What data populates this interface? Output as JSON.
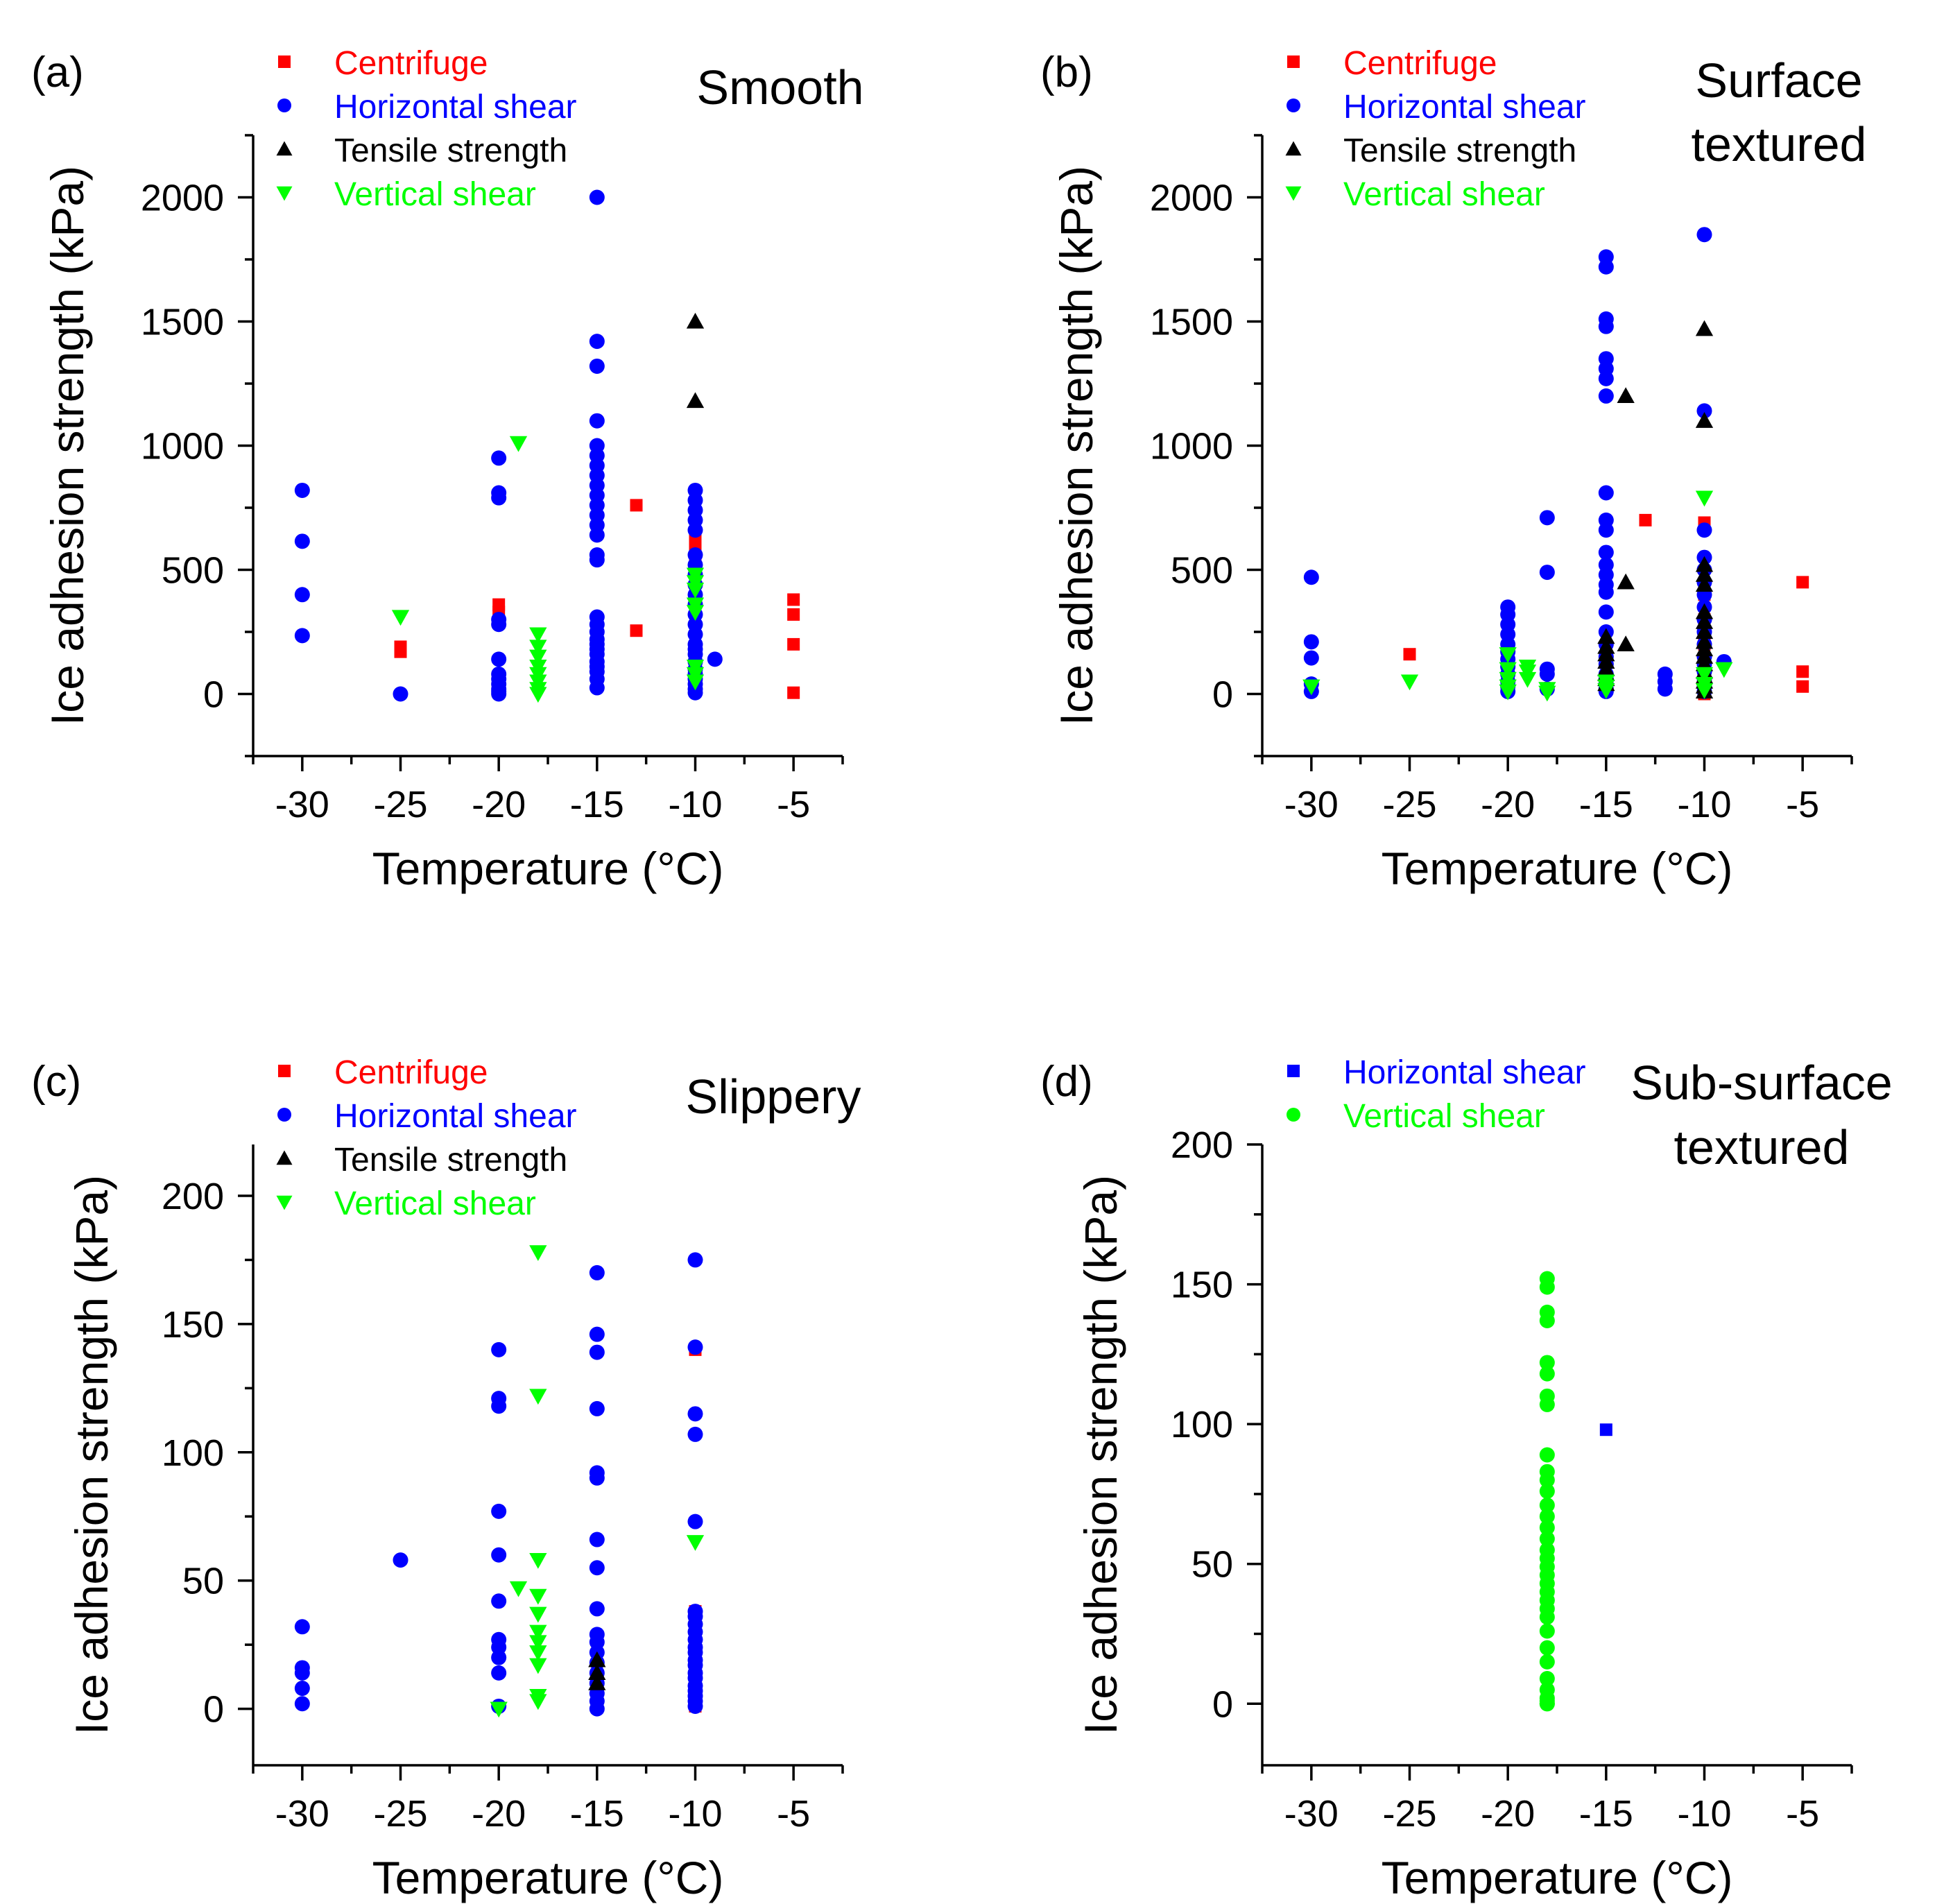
{
  "chart_data": [
    {
      "type": "scatter",
      "panel_label": "(a)",
      "title": [
        "Smooth"
      ],
      "xlabel": "Temperature (°C)",
      "ylabel": "Ice adhesion strength (kPa)",
      "xlim": [
        -32.5,
        -2.5
      ],
      "ylim": [
        -250,
        2250
      ],
      "xticks": [
        -30,
        -25,
        -20,
        -15,
        -10,
        -5
      ],
      "yticks": [
        0,
        500,
        1000,
        1500,
        2000
      ],
      "legend_position": "top-left",
      "series": [
        {
          "name": "Centrifuge",
          "marker": "square",
          "color": "#ff0000",
          "x": [
            -25,
            -25,
            -20,
            -20,
            -13,
            -13,
            -10,
            -10,
            -10,
            -10,
            -5,
            -5,
            -5,
            -5
          ],
          "y": [
            190,
            170,
            360,
            330,
            760,
            255,
            640,
            600,
            520,
            120,
            380,
            320,
            200,
            5
          ]
        },
        {
          "name": "Horizontal shear",
          "marker": "circle",
          "color": "#0000ff",
          "x": [
            -30,
            -30,
            -30,
            -30,
            -25,
            -20,
            -20,
            -20,
            -20,
            -20,
            -20,
            -20,
            -20,
            -20,
            -20,
            -20,
            -20,
            -15,
            -15,
            -15,
            -15,
            -15,
            -15,
            -15,
            -15,
            -15,
            -15,
            -15,
            -15,
            -15,
            -15,
            -15,
            -15,
            -15,
            -15,
            -15,
            -15,
            -15,
            -15,
            -15,
            -15,
            -15,
            -15,
            -15,
            -15,
            -10,
            -10,
            -10,
            -10,
            -10,
            -10,
            -10,
            -10,
            -10,
            -10,
            -10,
            -10,
            -10,
            -10,
            -10,
            -10,
            -10,
            -10,
            -10,
            -10,
            -10,
            -10,
            -10,
            -10,
            -9
          ],
          "y": [
            820,
            615,
            400,
            235,
            0,
            950,
            810,
            790,
            300,
            280,
            140,
            80,
            60,
            40,
            20,
            10,
            0,
            2000,
            1420,
            1320,
            1100,
            1000,
            960,
            920,
            880,
            840,
            800,
            760,
            720,
            680,
            640,
            560,
            540,
            310,
            280,
            250,
            220,
            200,
            180,
            160,
            130,
            110,
            90,
            60,
            25,
            820,
            780,
            740,
            700,
            660,
            560,
            520,
            480,
            440,
            400,
            360,
            320,
            280,
            240,
            200,
            180,
            160,
            130,
            100,
            80,
            60,
            40,
            20,
            5,
            140
          ]
        },
        {
          "name": "Tensile strength",
          "marker": "triangle-up",
          "color": "#000000",
          "x": [
            -10,
            -10
          ],
          "y": [
            1500,
            1180
          ]
        },
        {
          "name": "Vertical shear",
          "marker": "triangle-down",
          "color": "#00ff00",
          "x": [
            -25,
            -19,
            -18,
            -18,
            -18,
            -18,
            -18,
            -18,
            -18,
            -18,
            -10,
            -10,
            -10,
            -10,
            -10,
            -10,
            -10,
            -10
          ],
          "y": [
            310,
            1010,
            240,
            190,
            150,
            110,
            80,
            50,
            20,
            0,
            480,
            450,
            420,
            360,
            330,
            110,
            80,
            50
          ]
        }
      ]
    },
    {
      "type": "scatter",
      "panel_label": "(b)",
      "title": [
        "Surface",
        "textured"
      ],
      "xlabel": "Temperature (°C)",
      "ylabel": "Ice adhesion strength (kPa)",
      "xlim": [
        -32.5,
        -2.5
      ],
      "ylim": [
        -250,
        2250
      ],
      "xticks": [
        -30,
        -25,
        -20,
        -15,
        -10,
        -5
      ],
      "yticks": [
        0,
        500,
        1000,
        1500,
        2000
      ],
      "legend_position": "top-left",
      "series": [
        {
          "name": "Centrifuge",
          "marker": "square",
          "color": "#ff0000",
          "x": [
            -25,
            -13,
            -10,
            -10,
            -10,
            -10,
            -10,
            -10,
            -5,
            -5,
            -5
          ],
          "y": [
            160,
            700,
            690,
            400,
            300,
            200,
            100,
            0,
            450,
            90,
            30
          ]
        },
        {
          "name": "Horizontal shear",
          "marker": "circle",
          "color": "#0000ff",
          "x": [
            -30,
            -30,
            -30,
            -30,
            -30,
            -20,
            -20,
            -20,
            -20,
            -20,
            -20,
            -20,
            -20,
            -20,
            -20,
            -20,
            -20,
            -18,
            -18,
            -18,
            -18,
            -18,
            -15,
            -15,
            -15,
            -15,
            -15,
            -15,
            -15,
            -15,
            -15,
            -15,
            -15,
            -15,
            -15,
            -15,
            -15,
            -15,
            -15,
            -15,
            -15,
            -15,
            -15,
            -15,
            -15,
            -15,
            -15,
            -15,
            -12,
            -12,
            -12,
            -10,
            -10,
            -10,
            -10,
            -10,
            -10,
            -10,
            -10,
            -10,
            -10,
            -10,
            -10,
            -10,
            -10,
            -10,
            -10,
            -10,
            -9
          ],
          "y": [
            470,
            210,
            145,
            40,
            10,
            350,
            320,
            280,
            240,
            200,
            170,
            140,
            110,
            80,
            50,
            30,
            10,
            710,
            490,
            100,
            80,
            20,
            1760,
            1720,
            1510,
            1480,
            1350,
            1310,
            1270,
            1200,
            810,
            700,
            660,
            570,
            520,
            480,
            440,
            410,
            330,
            250,
            200,
            150,
            120,
            80,
            60,
            40,
            20,
            10,
            80,
            50,
            20,
            1850,
            1140,
            660,
            550,
            500,
            450,
            400,
            350,
            300,
            250,
            200,
            150,
            120,
            90,
            60,
            30,
            10,
            130
          ]
        },
        {
          "name": "Tensile strength",
          "marker": "triangle-up",
          "color": "#000000",
          "x": [
            -15,
            -15,
            -15,
            -15,
            -15,
            -15,
            -15,
            -15,
            -14,
            -14,
            -14,
            -10,
            -10,
            -10,
            -10,
            -10,
            -10,
            -10,
            -10,
            -10,
            -10,
            -10,
            -10,
            -10,
            -10,
            -10,
            -10,
            -10
          ],
          "y": [
            230,
            190,
            160,
            130,
            100,
            80,
            60,
            40,
            1200,
            450,
            200,
            1470,
            1100,
            520,
            480,
            440,
            330,
            290,
            250,
            210,
            180,
            150,
            120,
            90,
            70,
            50,
            30,
            10
          ]
        },
        {
          "name": "Vertical shear",
          "marker": "triangle-down",
          "color": "#00ff00",
          "x": [
            -30,
            -25,
            -20,
            -20,
            -20,
            -20,
            -20,
            -19,
            -19,
            -19,
            -18,
            -18,
            -15,
            -15,
            -15,
            -10,
            -10,
            -10,
            -10,
            -9
          ],
          "y": [
            30,
            50,
            160,
            100,
            60,
            30,
            10,
            110,
            90,
            60,
            20,
            5,
            50,
            30,
            15,
            790,
            80,
            40,
            15,
            100
          ]
        }
      ]
    },
    {
      "type": "scatter",
      "panel_label": "(c)",
      "title": [
        "Slippery"
      ],
      "xlabel": "Temperature (°C)",
      "ylabel": "Ice adhesion strength (kPa)",
      "xlim": [
        -32.5,
        -2.5
      ],
      "ylim": [
        -22,
        220
      ],
      "xticks": [
        -30,
        -25,
        -20,
        -15,
        -10,
        -5
      ],
      "yticks": [
        0,
        50,
        100,
        150,
        200
      ],
      "legend_position": "top-left",
      "series": [
        {
          "name": "Centrifuge",
          "marker": "square",
          "color": "#ff0000",
          "x": [
            -10,
            -10,
            -10
          ],
          "y": [
            140,
            38,
            1
          ]
        },
        {
          "name": "Horizontal shear",
          "marker": "circle",
          "color": "#0000ff",
          "x": [
            -30,
            -30,
            -30,
            -30,
            -30,
            -25,
            -20,
            -20,
            -20,
            -20,
            -20,
            -20,
            -20,
            -20,
            -20,
            -20,
            -20,
            -15,
            -15,
            -15,
            -15,
            -15,
            -15,
            -15,
            -15,
            -15,
            -15,
            -15,
            -15,
            -15,
            -15,
            -15,
            -15,
            -15,
            -15,
            -10,
            -10,
            -10,
            -10,
            -10,
            -10,
            -10,
            -10,
            -10,
            -10,
            -10,
            -10,
            -10,
            -10,
            -10,
            -10,
            -10,
            -10,
            -10,
            -10,
            -10
          ],
          "y": [
            32,
            16,
            14,
            8,
            2,
            58,
            140,
            121,
            118,
            77,
            60,
            42,
            27,
            24,
            20,
            14,
            1,
            170,
            146,
            139,
            117,
            92,
            90,
            66,
            55,
            39,
            29,
            26,
            22,
            18,
            14,
            10,
            6,
            3,
            0,
            175,
            141,
            115,
            107,
            73,
            38,
            36,
            33,
            30,
            27,
            24,
            22,
            19,
            17,
            14,
            12,
            9,
            7,
            5,
            3,
            1
          ]
        },
        {
          "name": "Tensile strength",
          "marker": "triangle-up",
          "color": "#000000",
          "x": [
            -15,
            -15,
            -15
          ],
          "y": [
            19,
            14,
            10
          ]
        },
        {
          "name": "Vertical shear",
          "marker": "triangle-down",
          "color": "#00ff00",
          "x": [
            -20,
            -19,
            -18,
            -18,
            -18,
            -18,
            -18,
            -18,
            -18,
            -18,
            -18,
            -18,
            -18,
            -10
          ],
          "y": [
            0,
            47,
            178,
            122,
            58,
            44,
            37,
            30,
            26,
            22,
            17,
            5,
            3,
            65
          ]
        }
      ]
    },
    {
      "type": "scatter",
      "panel_label": "(d)",
      "title": [
        "Sub-surface",
        "textured"
      ],
      "xlabel": "Temperature (°C)",
      "ylabel": "Ice adhesion strength (kPa)",
      "xlim": [
        -32.5,
        -2.5
      ],
      "ylim": [
        -22,
        200
      ],
      "xticks": [
        -30,
        -25,
        -20,
        -15,
        -10,
        -5
      ],
      "yticks": [
        0,
        50,
        100,
        150,
        200
      ],
      "legend_position": "top-left",
      "series": [
        {
          "name": "Horizontal shear",
          "marker": "square",
          "color": "#0000ff",
          "x": [
            -15
          ],
          "y": [
            98
          ]
        },
        {
          "name": "Vertical shear",
          "marker": "circle",
          "color": "#00ff00",
          "x": [
            -18,
            -18,
            -18,
            -18,
            -18,
            -18,
            -18,
            -18,
            -18,
            -18,
            -18,
            -18,
            -18,
            -18,
            -18,
            -18,
            -18,
            -18,
            -18,
            -18,
            -18,
            -18,
            -18,
            -18,
            -18,
            -18,
            -18,
            -18,
            -18,
            -18,
            -18,
            -18,
            -18,
            -18
          ],
          "y": [
            152,
            149,
            140,
            137,
            122,
            118,
            110,
            107,
            89,
            83,
            80,
            76,
            71,
            67,
            63,
            59,
            55,
            52,
            49,
            46,
            43,
            40,
            37,
            34,
            31,
            26,
            20,
            15,
            9,
            5,
            2,
            1,
            0,
            0
          ]
        }
      ]
    }
  ]
}
